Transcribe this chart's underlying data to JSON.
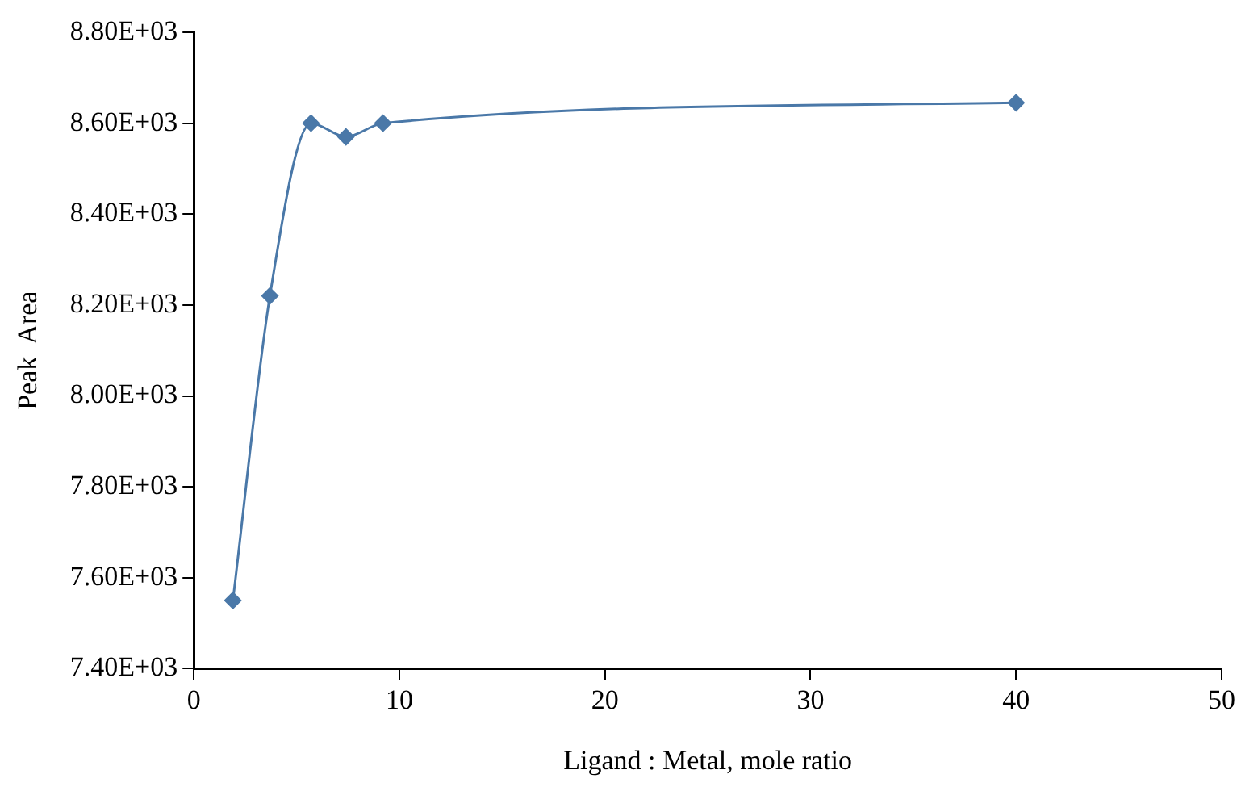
{
  "chart_data": {
    "type": "line",
    "xlabel": "Ligand : Metal, mole ratio",
    "ylabel": "Peak  Area",
    "x": [
      1.9,
      3.7,
      5.7,
      7.4,
      9.2,
      40
    ],
    "series": [
      {
        "color": "#4a78a8",
        "values": [
          7550,
          8220,
          8600,
          8570,
          8600,
          8645
        ]
      }
    ],
    "xlim": [
      0,
      50
    ],
    "xticks": [
      0,
      10,
      20,
      30,
      40,
      50
    ],
    "ylim": [
      7400,
      8800
    ],
    "yticks": [
      {
        "value": 7400,
        "label": "7.40E+03"
      },
      {
        "value": 7600,
        "label": "7.60E+03"
      },
      {
        "value": 7800,
        "label": "7.80E+03"
      },
      {
        "value": 8000,
        "label": "8.00E+03"
      },
      {
        "value": 8200,
        "label": "8.20E+03"
      },
      {
        "value": 8400,
        "label": "8.40E+03"
      },
      {
        "value": 8600,
        "label": "8.60E+03"
      },
      {
        "value": 8800,
        "label": "8.80E+03"
      }
    ],
    "grid": false,
    "legend": false,
    "marker": "diamond",
    "line_style": "solid"
  }
}
